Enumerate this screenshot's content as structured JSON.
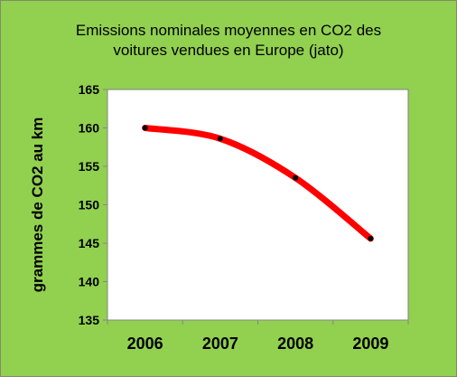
{
  "chart_data": {
    "type": "line",
    "title": "Emissions nominales moyennes en CO2 des\nvoitures vendues en Europe (jato)",
    "xlabel": "",
    "ylabel": "grammes de CO2 au km",
    "categories": [
      "2006",
      "2007",
      "2008",
      "2009"
    ],
    "series": [
      {
        "values": [
          160,
          158.6,
          153.5,
          145.6
        ]
      }
    ],
    "ylim": [
      135,
      165
    ],
    "yticks": [
      135,
      140,
      145,
      150,
      155,
      160,
      165
    ],
    "grid": false,
    "smooth": true,
    "colors": {
      "background": "#92d050",
      "plot_area": "#ffffff",
      "line": "#ff0000",
      "marker": "#000000"
    }
  }
}
